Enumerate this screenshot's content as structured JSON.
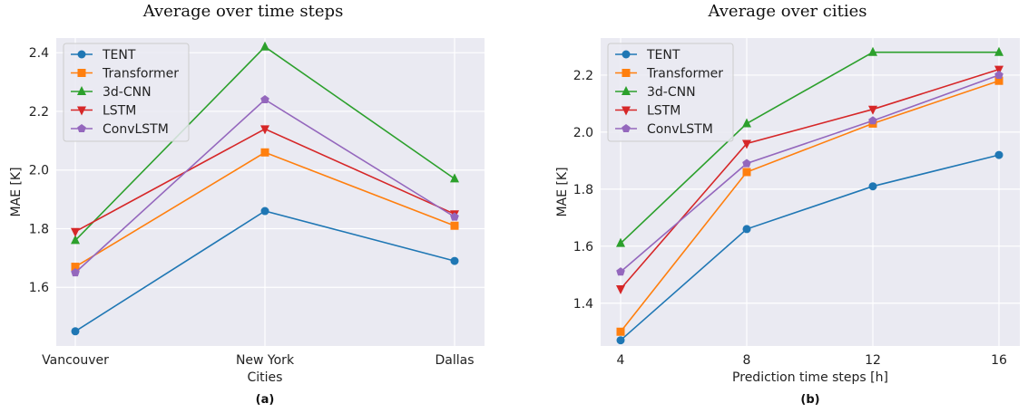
{
  "chart_data": [
    {
      "type": "line",
      "id": "a",
      "title": "Average over time steps",
      "xlabel": "Cities",
      "ylabel": "MAE [K]",
      "sublabel": "(a)",
      "categories": [
        "Vancouver",
        "New York",
        "Dallas"
      ],
      "ylim": [
        1.4,
        2.45
      ],
      "yticks": [
        "1.6",
        "1.8",
        "2.0",
        "2.2",
        "2.4"
      ],
      "legend_position": "top-left",
      "series": [
        {
          "name": "TENT",
          "color": "#1f77b4",
          "marker": "circle",
          "values": [
            1.45,
            1.86,
            1.69
          ]
        },
        {
          "name": "Transformer",
          "color": "#ff7f0e",
          "marker": "square",
          "values": [
            1.67,
            2.06,
            1.81
          ]
        },
        {
          "name": "3d-CNN",
          "color": "#2ca02c",
          "marker": "triangle-up",
          "values": [
            1.76,
            2.42,
            1.97
          ]
        },
        {
          "name": "LSTM",
          "color": "#d62728",
          "marker": "triangle-down",
          "values": [
            1.79,
            2.14,
            1.85
          ]
        },
        {
          "name": "ConvLSTM",
          "color": "#9467bd",
          "marker": "pentagon",
          "values": [
            1.65,
            2.24,
            1.84
          ]
        }
      ]
    },
    {
      "type": "line",
      "id": "b",
      "title": "Average over cities",
      "xlabel": "Prediction time steps [h]",
      "ylabel": "MAE [K]",
      "sublabel": "(b)",
      "categories": [
        "4",
        "8",
        "12",
        "16"
      ],
      "ylim": [
        1.25,
        2.33
      ],
      "yticks": [
        "1.4",
        "1.6",
        "1.8",
        "2.0",
        "2.2"
      ],
      "legend_position": "top-left",
      "series": [
        {
          "name": "TENT",
          "color": "#1f77b4",
          "marker": "circle",
          "values": [
            1.27,
            1.66,
            1.81,
            1.92
          ]
        },
        {
          "name": "Transformer",
          "color": "#ff7f0e",
          "marker": "square",
          "values": [
            1.3,
            1.86,
            2.03,
            2.18
          ]
        },
        {
          "name": "3d-CNN",
          "color": "#2ca02c",
          "marker": "triangle-up",
          "values": [
            1.61,
            2.03,
            2.28,
            2.28
          ]
        },
        {
          "name": "LSTM",
          "color": "#d62728",
          "marker": "triangle-down",
          "values": [
            1.45,
            1.96,
            2.08,
            2.22
          ]
        },
        {
          "name": "ConvLSTM",
          "color": "#9467bd",
          "marker": "pentagon",
          "values": [
            1.51,
            1.89,
            2.04,
            2.2
          ]
        }
      ]
    }
  ]
}
